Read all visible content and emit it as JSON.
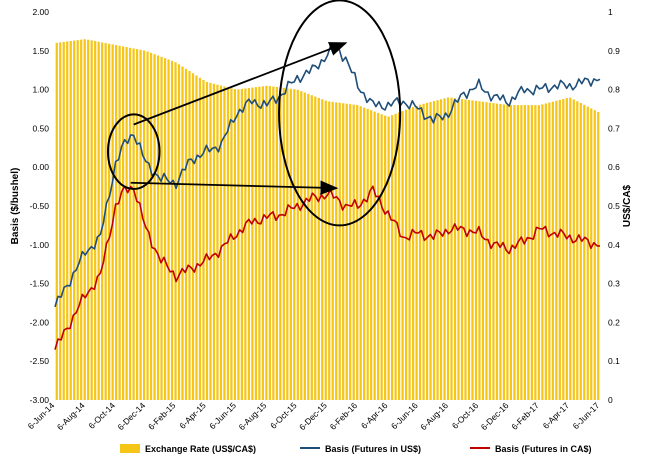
{
  "chart_data": {
    "type": "bar+line",
    "title": "",
    "left_axis": {
      "label": "Basis ($/bushel)",
      "ylim": [
        -3.0,
        2.0
      ],
      "ticks": [
        "2.00",
        "1.50",
        "1.00",
        "0.50",
        "0.00",
        "-0.50",
        "-1.00",
        "-1.50",
        "-2.00",
        "-2.50",
        "-3.00"
      ]
    },
    "right_axis": {
      "label": "US$/CA$",
      "ylim": [
        0,
        1
      ],
      "ticks": [
        "1",
        "0.9",
        "0.8",
        "0.7",
        "0.6",
        "0.5",
        "0.4",
        "0.3",
        "0.2",
        "0.1",
        "0"
      ]
    },
    "x_tick_labels": [
      "6-Jun-14",
      "6-Aug-14",
      "6-Oct-14",
      "6-Dec-14",
      "6-Feb-15",
      "6-Apr-15",
      "6-Jun-15",
      "6-Aug-15",
      "6-Oct-15",
      "6-Dec-15",
      "6-Feb-16",
      "6-Apr-16",
      "6-Jun-16",
      "6-Aug-16",
      "6-Oct-16",
      "6-Dec-16",
      "6-Feb-17",
      "6-Apr-17",
      "6-Jun-17"
    ],
    "legend": {
      "placement": "bottom",
      "items": [
        "Exchange Rate (US$/CA$)",
        "Basis (Futures in US$)",
        "Basis (Futures in CA$)"
      ]
    },
    "colors": {
      "bars": "#F5C518",
      "us_line": "#1F4E79",
      "ca_line": "#C00000",
      "annotation": "#000000"
    },
    "series": [
      {
        "name": "Exchange Rate (US$/CA$)",
        "axis": "right",
        "kind": "bar",
        "x": [
          0,
          1,
          2,
          3,
          4,
          5,
          6,
          7,
          8,
          9,
          10,
          11,
          12,
          13,
          14,
          15,
          16,
          17,
          18
        ],
        "values": [
          0.92,
          0.93,
          0.915,
          0.9,
          0.87,
          0.82,
          0.8,
          0.81,
          0.8,
          0.77,
          0.76,
          0.73,
          0.76,
          0.78,
          0.77,
          0.76,
          0.76,
          0.78,
          0.74
        ]
      },
      {
        "name": "Basis (Futures in US$)",
        "axis": "left",
        "kind": "line",
        "x": [
          0,
          0.5,
          1,
          1.5,
          2,
          2.3,
          2.6,
          3,
          3.5,
          4,
          4.5,
          5,
          5.5,
          6,
          6.5,
          7,
          7.5,
          8,
          8.5,
          9,
          9.3,
          9.6,
          10,
          10.5,
          11,
          11.5,
          12,
          12.5,
          13,
          13.5,
          14,
          14.5,
          15,
          15.5,
          16,
          16.5,
          17,
          17.5,
          18
        ],
        "values": [
          -1.8,
          -1.45,
          -1.1,
          -0.9,
          0.05,
          0.3,
          0.45,
          0.05,
          -0.15,
          -0.2,
          0.1,
          0.2,
          0.3,
          0.7,
          0.85,
          0.8,
          0.95,
          1.15,
          1.25,
          1.45,
          1.55,
          1.4,
          1.05,
          0.8,
          0.8,
          0.85,
          0.75,
          0.6,
          0.7,
          0.95,
          1.05,
          0.9,
          0.85,
          1.0,
          1.0,
          1.05,
          1.05,
          1.1,
          1.15
        ]
      },
      {
        "name": "Basis (Futures in CA$)",
        "axis": "left",
        "kind": "line",
        "x": [
          0,
          0.5,
          1,
          1.5,
          2,
          2.3,
          2.6,
          3,
          3.5,
          4,
          4.5,
          5,
          5.5,
          6,
          6.5,
          7,
          7.5,
          8,
          8.5,
          9,
          9.3,
          9.6,
          10,
          10.5,
          11,
          11.5,
          12,
          12.5,
          13,
          13.5,
          14,
          14.5,
          15,
          15.5,
          16,
          16.5,
          17,
          17.5,
          18
        ],
        "values": [
          -2.35,
          -2.0,
          -1.65,
          -1.4,
          -0.5,
          -0.3,
          -0.25,
          -0.8,
          -1.2,
          -1.4,
          -1.3,
          -1.2,
          -1.05,
          -0.85,
          -0.7,
          -0.65,
          -0.6,
          -0.5,
          -0.4,
          -0.35,
          -0.4,
          -0.5,
          -0.5,
          -0.3,
          -0.6,
          -0.9,
          -0.85,
          -0.9,
          -0.8,
          -0.8,
          -0.85,
          -1.0,
          -1.05,
          -0.95,
          -0.8,
          -0.85,
          -0.9,
          -0.95,
          -1.0
        ]
      }
    ],
    "annotations": [
      {
        "type": "ellipse",
        "center": [
          2.6,
          0.2
        ],
        "radius": [
          0.85,
          0.48
        ]
      },
      {
        "type": "ellipse",
        "center": [
          9.4,
          0.7
        ],
        "radius": [
          2.0,
          1.45
        ]
      },
      {
        "type": "arrow",
        "from": [
          2.6,
          0.55
        ],
        "to": [
          9.6,
          1.6
        ]
      },
      {
        "type": "arrow",
        "from": [
          2.5,
          -0.2
        ],
        "to": [
          9.3,
          -0.27
        ]
      }
    ]
  }
}
